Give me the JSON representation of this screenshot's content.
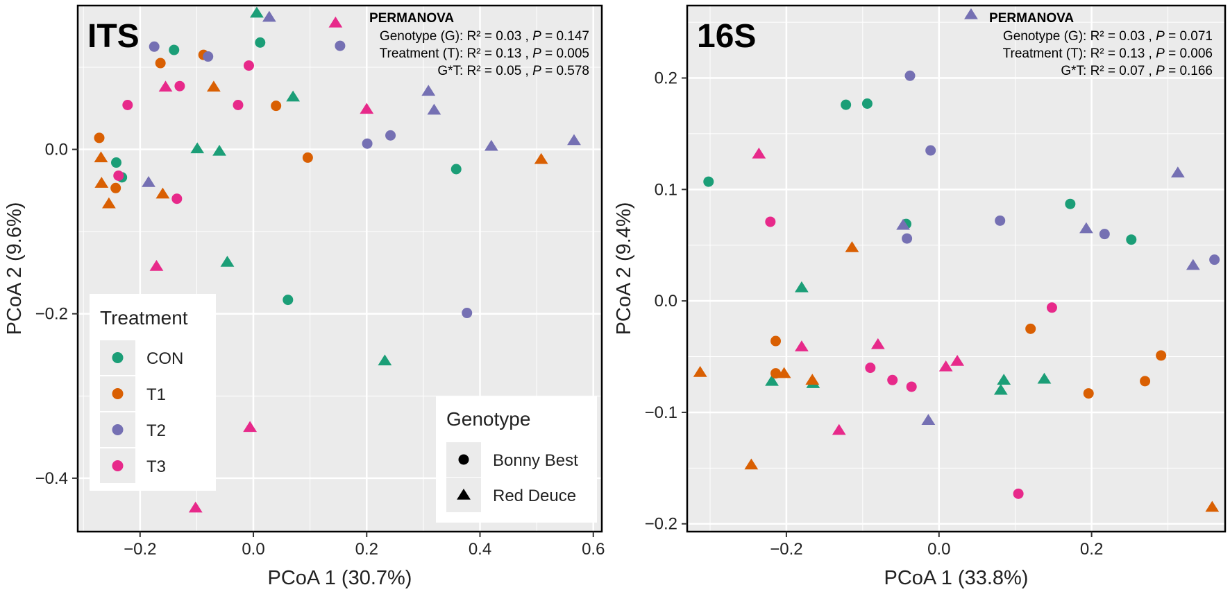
{
  "colors": {
    "CON": "#1b9e77",
    "T1": "#d95f02",
    "T2": "#7570b3",
    "T3": "#e7298a",
    "panel_bg": "#ebebeb",
    "grid": "#ffffff",
    "frame": "#000000"
  },
  "legend": {
    "treatment_title": "Treatment",
    "treatments": [
      "CON",
      "T1",
      "T2",
      "T3"
    ],
    "genotype_title": "Genotype",
    "genotypes": [
      {
        "label": "Bonny Best",
        "shape": "circle"
      },
      {
        "label": "Red Deuce",
        "shape": "triangle"
      }
    ]
  },
  "chart_data": [
    {
      "type": "scatter",
      "title": "ITS",
      "xlabel": "PCoA 1 (30.7%)",
      "ylabel": "PCoA 2 (9.6%)",
      "xlim": [
        -0.31,
        0.615
      ],
      "ylim": [
        -0.465,
        0.175
      ],
      "xticks": [
        -0.2,
        0.0,
        0.2,
        0.4,
        0.6
      ],
      "xtick_labels": [
        "−0.2",
        "0.0",
        "0.2",
        "0.4",
        "0.6"
      ],
      "yticks": [
        0.0,
        -0.2,
        -0.4
      ],
      "ytick_labels": [
        "0.0",
        "−0.2",
        "−0.4"
      ],
      "grid": true,
      "permanova": {
        "title": "PERMANOVA",
        "rows": [
          {
            "label": "Genotype (G): R² = 0.03 , ",
            "p": "P",
            "value": " = 0.147"
          },
          {
            "label": "Treatment (T): R² = 0.13 , ",
            "p": "P",
            "value": " = 0.005"
          },
          {
            "label": "G*T: R² = 0.05 , ",
            "p": "P",
            "value": " = 0.578"
          }
        ]
      },
      "points": [
        {
          "x": 0.006,
          "y": 0.166,
          "treatment": "CON",
          "genotype": "Red Deuce"
        },
        {
          "x": 0.012,
          "y": 0.13,
          "treatment": "CON",
          "genotype": "Bonny Best"
        },
        {
          "x": -0.14,
          "y": 0.121,
          "treatment": "CON",
          "genotype": "Bonny Best"
        },
        {
          "x": 0.07,
          "y": 0.064,
          "treatment": "CON",
          "genotype": "Red Deuce"
        },
        {
          "x": -0.099,
          "y": 0.001,
          "treatment": "CON",
          "genotype": "Red Deuce"
        },
        {
          "x": -0.06,
          "y": -0.002,
          "treatment": "CON",
          "genotype": "Red Deuce"
        },
        {
          "x": -0.242,
          "y": -0.016,
          "treatment": "CON",
          "genotype": "Bonny Best"
        },
        {
          "x": -0.232,
          "y": -0.034,
          "treatment": "CON",
          "genotype": "Bonny Best"
        },
        {
          "x": 0.358,
          "y": -0.024,
          "treatment": "CON",
          "genotype": "Bonny Best"
        },
        {
          "x": -0.046,
          "y": -0.137,
          "treatment": "CON",
          "genotype": "Red Deuce"
        },
        {
          "x": 0.061,
          "y": -0.183,
          "treatment": "CON",
          "genotype": "Bonny Best"
        },
        {
          "x": 0.232,
          "y": -0.257,
          "treatment": "CON",
          "genotype": "Red Deuce"
        },
        {
          "x": -0.088,
          "y": 0.115,
          "treatment": "T1",
          "genotype": "Bonny Best"
        },
        {
          "x": -0.164,
          "y": 0.105,
          "treatment": "T1",
          "genotype": "Bonny Best"
        },
        {
          "x": -0.07,
          "y": 0.076,
          "treatment": "T1",
          "genotype": "Red Deuce"
        },
        {
          "x": 0.04,
          "y": 0.053,
          "treatment": "T1",
          "genotype": "Bonny Best"
        },
        {
          "x": -0.272,
          "y": 0.014,
          "treatment": "T1",
          "genotype": "Bonny Best"
        },
        {
          "x": -0.269,
          "y": -0.01,
          "treatment": "T1",
          "genotype": "Red Deuce"
        },
        {
          "x": 0.096,
          "y": -0.01,
          "treatment": "T1",
          "genotype": "Bonny Best"
        },
        {
          "x": 0.508,
          "y": -0.012,
          "treatment": "T1",
          "genotype": "Red Deuce"
        },
        {
          "x": -0.268,
          "y": -0.041,
          "treatment": "T1",
          "genotype": "Red Deuce"
        },
        {
          "x": -0.243,
          "y": -0.047,
          "treatment": "T1",
          "genotype": "Bonny Best"
        },
        {
          "x": -0.16,
          "y": -0.054,
          "treatment": "T1",
          "genotype": "Red Deuce"
        },
        {
          "x": -0.255,
          "y": -0.066,
          "treatment": "T1",
          "genotype": "Red Deuce"
        },
        {
          "x": 0.028,
          "y": 0.161,
          "treatment": "T2",
          "genotype": "Red Deuce"
        },
        {
          "x": -0.175,
          "y": 0.125,
          "treatment": "T2",
          "genotype": "Bonny Best"
        },
        {
          "x": 0.153,
          "y": 0.126,
          "treatment": "T2",
          "genotype": "Bonny Best"
        },
        {
          "x": -0.08,
          "y": 0.113,
          "treatment": "T2",
          "genotype": "Bonny Best"
        },
        {
          "x": 0.309,
          "y": 0.071,
          "treatment": "T2",
          "genotype": "Red Deuce"
        },
        {
          "x": 0.319,
          "y": 0.048,
          "treatment": "T2",
          "genotype": "Red Deuce"
        },
        {
          "x": 0.242,
          "y": 0.017,
          "treatment": "T2",
          "genotype": "Bonny Best"
        },
        {
          "x": 0.201,
          "y": 0.007,
          "treatment": "T2",
          "genotype": "Bonny Best"
        },
        {
          "x": 0.42,
          "y": 0.004,
          "treatment": "T2",
          "genotype": "Red Deuce"
        },
        {
          "x": 0.566,
          "y": 0.011,
          "treatment": "T2",
          "genotype": "Red Deuce"
        },
        {
          "x": -0.185,
          "y": -0.04,
          "treatment": "T2",
          "genotype": "Red Deuce"
        },
        {
          "x": 0.377,
          "y": -0.199,
          "treatment": "T2",
          "genotype": "Bonny Best"
        },
        {
          "x": 0.145,
          "y": 0.154,
          "treatment": "T3",
          "genotype": "Red Deuce"
        },
        {
          "x": -0.008,
          "y": 0.102,
          "treatment": "T3",
          "genotype": "Bonny Best"
        },
        {
          "x": -0.155,
          "y": 0.076,
          "treatment": "T3",
          "genotype": "Red Deuce"
        },
        {
          "x": -0.13,
          "y": 0.077,
          "treatment": "T3",
          "genotype": "Bonny Best"
        },
        {
          "x": -0.222,
          "y": 0.054,
          "treatment": "T3",
          "genotype": "Bonny Best"
        },
        {
          "x": -0.027,
          "y": 0.054,
          "treatment": "T3",
          "genotype": "Bonny Best"
        },
        {
          "x": 0.2,
          "y": 0.049,
          "treatment": "T3",
          "genotype": "Red Deuce"
        },
        {
          "x": -0.238,
          "y": -0.032,
          "treatment": "T3",
          "genotype": "Bonny Best"
        },
        {
          "x": -0.135,
          "y": -0.06,
          "treatment": "T3",
          "genotype": "Bonny Best"
        },
        {
          "x": -0.171,
          "y": -0.142,
          "treatment": "T3",
          "genotype": "Red Deuce"
        },
        {
          "x": -0.006,
          "y": -0.338,
          "treatment": "T3",
          "genotype": "Red Deuce"
        },
        {
          "x": -0.102,
          "y": -0.436,
          "treatment": "T3",
          "genotype": "Red Deuce"
        }
      ]
    },
    {
      "type": "scatter",
      "title": "16S",
      "xlabel": "PCoA 1 (33.8%)",
      "ylabel": "PCoA 2 (9.4%)",
      "xlim": [
        -0.33,
        0.375
      ],
      "ylim": [
        -0.207,
        0.265
      ],
      "xticks": [
        -0.2,
        0.0,
        0.2
      ],
      "xtick_labels": [
        "−0.2",
        "0.0",
        "0.2"
      ],
      "yticks": [
        0.2,
        0.1,
        0.0,
        -0.1,
        -0.2
      ],
      "ytick_labels": [
        "0.2",
        "0.1",
        "0.0",
        "−0.1",
        "−0.2"
      ],
      "grid": true,
      "permanova": {
        "title": "PERMANOVA",
        "rows": [
          {
            "label": "Genotype (G): R² = 0.03 , ",
            "p": "P",
            "value": " = 0.071"
          },
          {
            "label": "Treatment (T): R² = 0.13 , ",
            "p": "P",
            "value": " = 0.006"
          },
          {
            "label": "G*T: R² = 0.07 , ",
            "p": "P",
            "value": " = 0.166"
          }
        ]
      },
      "points": [
        {
          "x": -0.122,
          "y": 0.176,
          "treatment": "CON",
          "genotype": "Bonny Best"
        },
        {
          "x": -0.094,
          "y": 0.177,
          "treatment": "CON",
          "genotype": "Bonny Best"
        },
        {
          "x": -0.302,
          "y": 0.107,
          "treatment": "CON",
          "genotype": "Bonny Best"
        },
        {
          "x": 0.172,
          "y": 0.087,
          "treatment": "CON",
          "genotype": "Bonny Best"
        },
        {
          "x": -0.043,
          "y": 0.069,
          "treatment": "CON",
          "genotype": "Bonny Best"
        },
        {
          "x": 0.252,
          "y": 0.055,
          "treatment": "CON",
          "genotype": "Bonny Best"
        },
        {
          "x": -0.18,
          "y": 0.012,
          "treatment": "CON",
          "genotype": "Red Deuce"
        },
        {
          "x": -0.219,
          "y": -0.072,
          "treatment": "CON",
          "genotype": "Red Deuce"
        },
        {
          "x": -0.165,
          "y": -0.074,
          "treatment": "CON",
          "genotype": "Red Deuce"
        },
        {
          "x": 0.085,
          "y": -0.071,
          "treatment": "CON",
          "genotype": "Red Deuce"
        },
        {
          "x": 0.081,
          "y": -0.08,
          "treatment": "CON",
          "genotype": "Red Deuce"
        },
        {
          "x": 0.138,
          "y": -0.07,
          "treatment": "CON",
          "genotype": "Red Deuce"
        },
        {
          "x": -0.114,
          "y": 0.048,
          "treatment": "T1",
          "genotype": "Red Deuce"
        },
        {
          "x": -0.214,
          "y": -0.036,
          "treatment": "T1",
          "genotype": "Bonny Best"
        },
        {
          "x": -0.214,
          "y": -0.065,
          "treatment": "T1",
          "genotype": "Bonny Best"
        },
        {
          "x": -0.203,
          "y": -0.065,
          "treatment": "T1",
          "genotype": "Red Deuce"
        },
        {
          "x": -0.166,
          "y": -0.071,
          "treatment": "T1",
          "genotype": "Red Deuce"
        },
        {
          "x": -0.313,
          "y": -0.064,
          "treatment": "T1",
          "genotype": "Red Deuce"
        },
        {
          "x": -0.246,
          "y": -0.147,
          "treatment": "T1",
          "genotype": "Red Deuce"
        },
        {
          "x": 0.12,
          "y": -0.025,
          "treatment": "T1",
          "genotype": "Bonny Best"
        },
        {
          "x": 0.196,
          "y": -0.083,
          "treatment": "T1",
          "genotype": "Bonny Best"
        },
        {
          "x": 0.27,
          "y": -0.072,
          "treatment": "T1",
          "genotype": "Bonny Best"
        },
        {
          "x": 0.291,
          "y": -0.049,
          "treatment": "T1",
          "genotype": "Bonny Best"
        },
        {
          "x": 0.358,
          "y": -0.185,
          "treatment": "T1",
          "genotype": "Red Deuce"
        },
        {
          "x": 0.042,
          "y": 0.257,
          "treatment": "T2",
          "genotype": "Red Deuce"
        },
        {
          "x": -0.038,
          "y": 0.202,
          "treatment": "T2",
          "genotype": "Bonny Best"
        },
        {
          "x": -0.011,
          "y": 0.135,
          "treatment": "T2",
          "genotype": "Bonny Best"
        },
        {
          "x": -0.047,
          "y": 0.068,
          "treatment": "T2",
          "genotype": "Red Deuce"
        },
        {
          "x": -0.042,
          "y": 0.056,
          "treatment": "T2",
          "genotype": "Bonny Best"
        },
        {
          "x": 0.08,
          "y": 0.072,
          "treatment": "T2",
          "genotype": "Bonny Best"
        },
        {
          "x": 0.193,
          "y": 0.065,
          "treatment": "T2",
          "genotype": "Red Deuce"
        },
        {
          "x": 0.217,
          "y": 0.06,
          "treatment": "T2",
          "genotype": "Bonny Best"
        },
        {
          "x": 0.313,
          "y": 0.115,
          "treatment": "T2",
          "genotype": "Red Deuce"
        },
        {
          "x": 0.333,
          "y": 0.032,
          "treatment": "T2",
          "genotype": "Red Deuce"
        },
        {
          "x": 0.361,
          "y": 0.037,
          "treatment": "T2",
          "genotype": "Bonny Best"
        },
        {
          "x": -0.014,
          "y": -0.107,
          "treatment": "T2",
          "genotype": "Red Deuce"
        },
        {
          "x": -0.236,
          "y": 0.132,
          "treatment": "T3",
          "genotype": "Red Deuce"
        },
        {
          "x": -0.221,
          "y": 0.071,
          "treatment": "T3",
          "genotype": "Bonny Best"
        },
        {
          "x": 0.148,
          "y": -0.006,
          "treatment": "T3",
          "genotype": "Bonny Best"
        },
        {
          "x": -0.18,
          "y": -0.041,
          "treatment": "T3",
          "genotype": "Red Deuce"
        },
        {
          "x": -0.08,
          "y": -0.039,
          "treatment": "T3",
          "genotype": "Red Deuce"
        },
        {
          "x": -0.09,
          "y": -0.06,
          "treatment": "T3",
          "genotype": "Bonny Best"
        },
        {
          "x": -0.061,
          "y": -0.071,
          "treatment": "T3",
          "genotype": "Bonny Best"
        },
        {
          "x": -0.036,
          "y": -0.077,
          "treatment": "T3",
          "genotype": "Bonny Best"
        },
        {
          "x": 0.009,
          "y": -0.059,
          "treatment": "T3",
          "genotype": "Red Deuce"
        },
        {
          "x": 0.024,
          "y": -0.054,
          "treatment": "T3",
          "genotype": "Red Deuce"
        },
        {
          "x": -0.131,
          "y": -0.116,
          "treatment": "T3",
          "genotype": "Red Deuce"
        },
        {
          "x": 0.104,
          "y": -0.173,
          "treatment": "T3",
          "genotype": "Bonny Best"
        }
      ]
    }
  ]
}
